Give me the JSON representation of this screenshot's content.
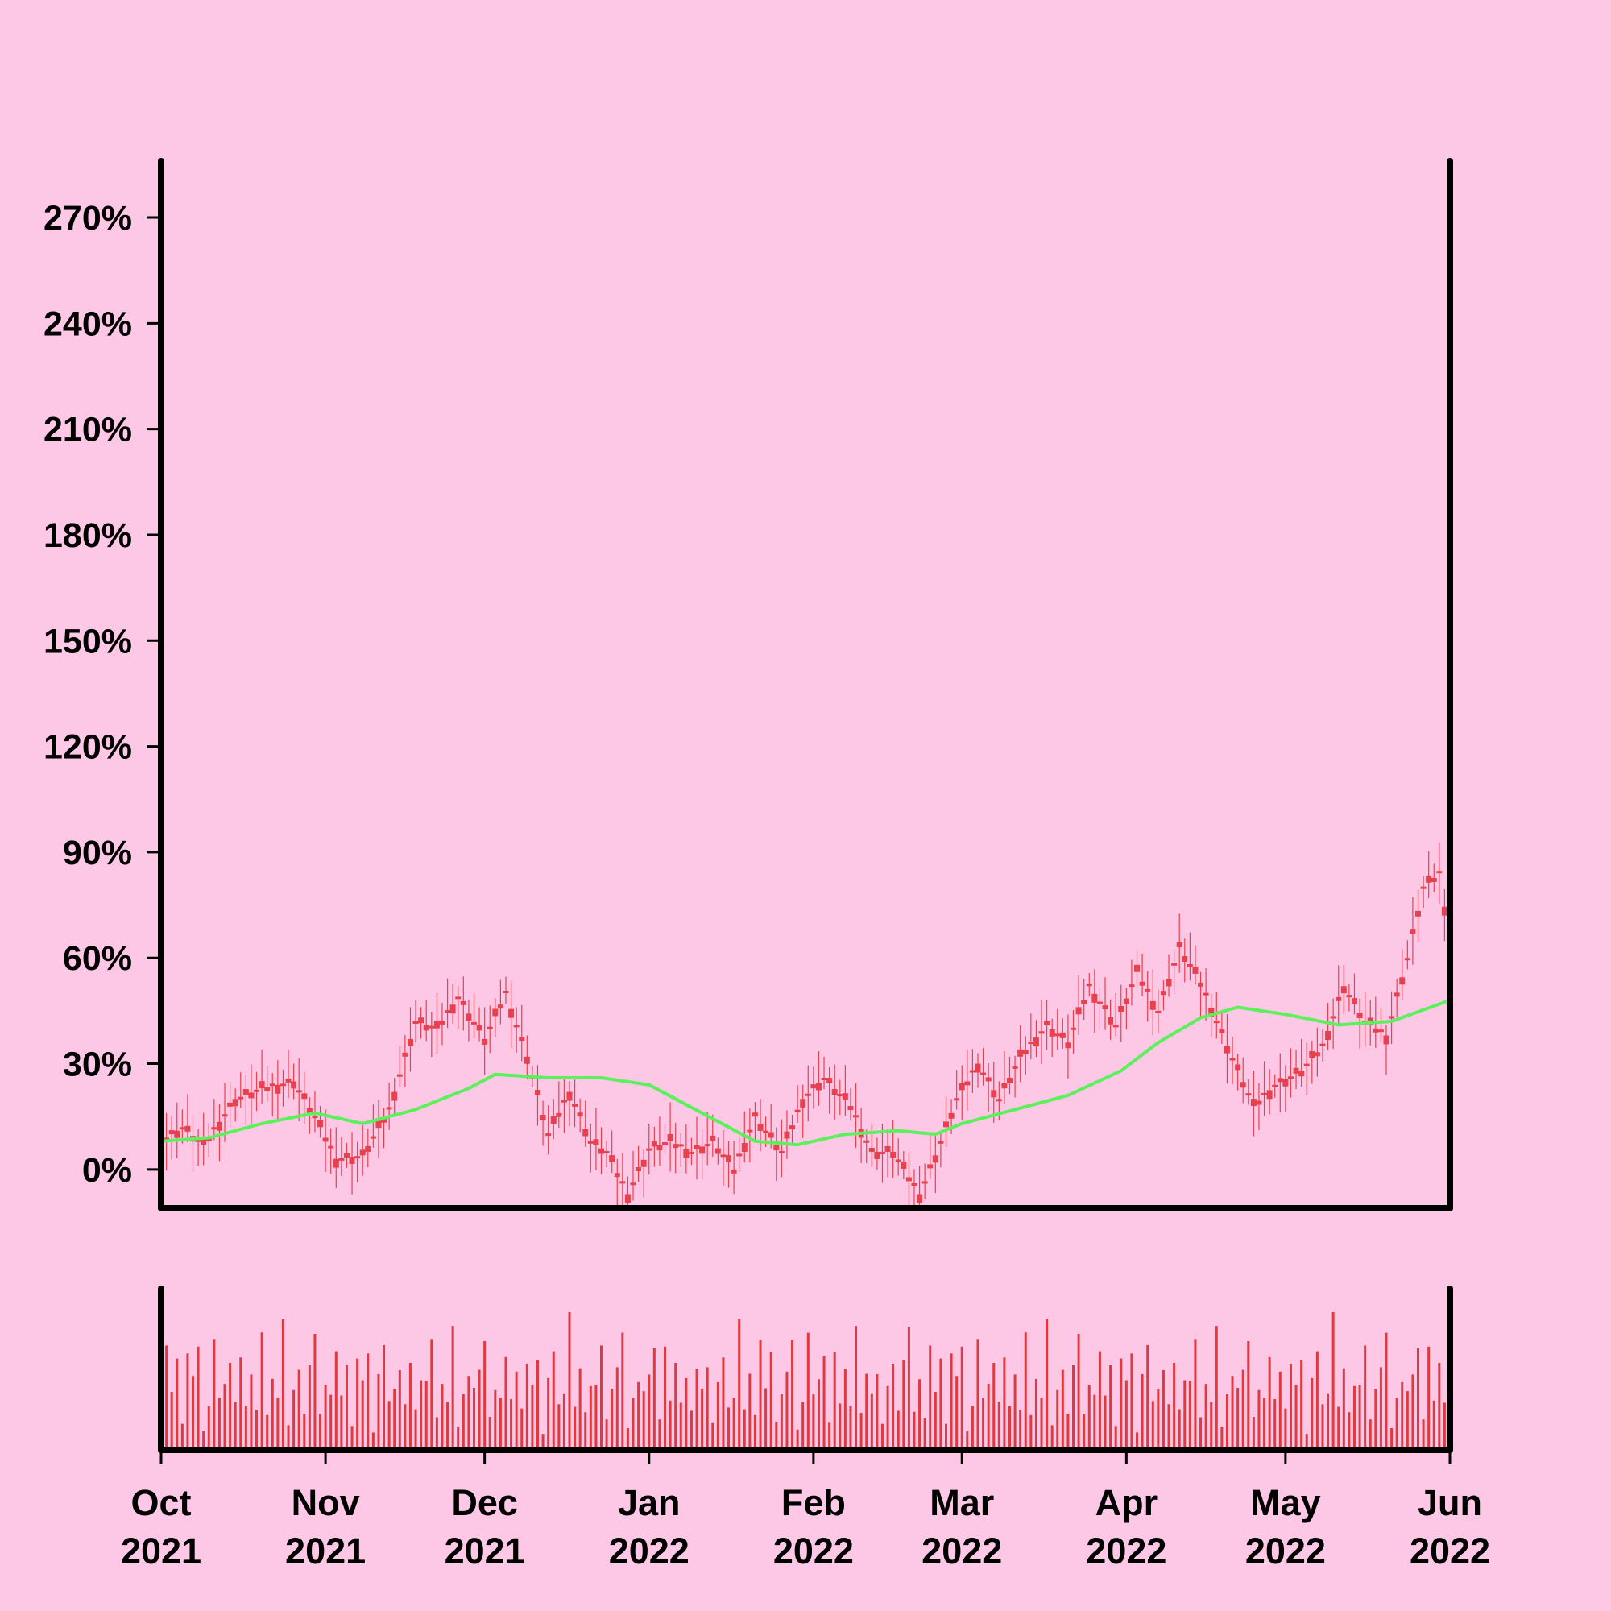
{
  "colors": {
    "background": "#fdc8e6",
    "candle": "#e8404e",
    "moving_average": "#5cf05c",
    "volume": "#e03a40",
    "axis": "#000000"
  },
  "chart_data": {
    "type": "candlestick",
    "title": "",
    "xlabel": "",
    "ylabel": "",
    "x_range": [
      "2021-10-01",
      "2022-06-01"
    ],
    "ylim": [
      -0.11,
      2.86
    ],
    "y_ticks": [
      0,
      0.3,
      0.6,
      0.9,
      1.2,
      1.5,
      1.8,
      2.1,
      2.4,
      2.7
    ],
    "y_tick_labels": [
      "0%",
      "30%",
      "60%",
      "90%",
      "120%",
      "150%",
      "180%",
      "210%",
      "240%",
      "270%"
    ],
    "x_ticks": [
      "2021-10-01",
      "2021-11-01",
      "2021-12-01",
      "2022-01-01",
      "2022-02-01",
      "2022-03-01",
      "2022-04-01",
      "2022-05-01",
      "2022-06-01"
    ],
    "x_tick_labels": [
      {
        "month": "Oct",
        "year": "2021"
      },
      {
        "month": "Nov",
        "year": "2021"
      },
      {
        "month": "Dec",
        "year": "2021"
      },
      {
        "month": "Jan",
        "year": "2022"
      },
      {
        "month": "Feb",
        "year": "2022"
      },
      {
        "month": "Mar",
        "year": "2022"
      },
      {
        "month": "Apr",
        "year": "2022"
      },
      {
        "month": "May",
        "year": "2022"
      },
      {
        "month": "Jun",
        "year": "2022"
      }
    ],
    "grid": false,
    "price_path": [
      [
        "2021-10-01",
        0.08
      ],
      [
        "2021-10-05",
        0.12
      ],
      [
        "2021-10-09",
        0.07
      ],
      [
        "2021-10-15",
        0.2
      ],
      [
        "2021-10-20",
        0.23
      ],
      [
        "2021-10-26",
        0.25
      ],
      [
        "2021-10-30",
        0.15
      ],
      [
        "2021-11-03",
        0.03
      ],
      [
        "2021-11-08",
        0.04
      ],
      [
        "2021-11-13",
        0.17
      ],
      [
        "2021-11-18",
        0.42
      ],
      [
        "2021-11-22",
        0.4
      ],
      [
        "2021-11-26",
        0.49
      ],
      [
        "2021-12-01",
        0.37
      ],
      [
        "2021-12-05",
        0.5
      ],
      [
        "2021-12-09",
        0.32
      ],
      [
        "2021-12-13",
        0.1
      ],
      [
        "2021-12-17",
        0.22
      ],
      [
        "2021-12-21",
        0.08
      ],
      [
        "2021-12-24",
        0.05
      ],
      [
        "2021-12-28",
        -0.07
      ],
      [
        "2022-01-01",
        0.06
      ],
      [
        "2022-01-05",
        0.08
      ],
      [
        "2022-01-09",
        0.05
      ],
      [
        "2022-01-13",
        0.08
      ],
      [
        "2022-01-17",
        0.0
      ],
      [
        "2022-01-21",
        0.15
      ],
      [
        "2022-01-26",
        0.05
      ],
      [
        "2022-01-30",
        0.2
      ],
      [
        "2022-02-03",
        0.26
      ],
      [
        "2022-02-08",
        0.18
      ],
      [
        "2022-02-12",
        0.05
      ],
      [
        "2022-02-16",
        0.05
      ],
      [
        "2022-02-21",
        -0.07
      ],
      [
        "2022-02-24",
        0.04
      ],
      [
        "2022-02-28",
        0.2
      ],
      [
        "2022-03-04",
        0.3
      ],
      [
        "2022-03-08",
        0.2
      ],
      [
        "2022-03-12",
        0.32
      ],
      [
        "2022-03-17",
        0.41
      ],
      [
        "2022-03-21",
        0.36
      ],
      [
        "2022-03-25",
        0.52
      ],
      [
        "2022-03-30",
        0.41
      ],
      [
        "2022-04-03",
        0.56
      ],
      [
        "2022-04-07",
        0.45
      ],
      [
        "2022-04-11",
        0.63
      ],
      [
        "2022-04-15",
        0.53
      ],
      [
        "2022-04-20",
        0.35
      ],
      [
        "2022-04-25",
        0.18
      ],
      [
        "2022-04-29",
        0.24
      ],
      [
        "2022-05-04",
        0.28
      ],
      [
        "2022-05-08",
        0.35
      ],
      [
        "2022-05-12",
        0.52
      ],
      [
        "2022-05-16",
        0.42
      ],
      [
        "2022-05-20",
        0.38
      ],
      [
        "2022-05-24",
        0.6
      ],
      [
        "2022-05-27",
        0.8
      ],
      [
        "2022-05-30",
        0.84
      ],
      [
        "2022-06-01",
        0.65
      ]
    ],
    "moving_average": [
      [
        "2021-10-01",
        0.08
      ],
      [
        "2021-10-10",
        0.09
      ],
      [
        "2021-10-20",
        0.13
      ],
      [
        "2021-10-30",
        0.16
      ],
      [
        "2021-11-08",
        0.13
      ],
      [
        "2021-11-18",
        0.17
      ],
      [
        "2021-11-28",
        0.23
      ],
      [
        "2021-12-03",
        0.27
      ],
      [
        "2021-12-13",
        0.26
      ],
      [
        "2021-12-23",
        0.26
      ],
      [
        "2022-01-01",
        0.24
      ],
      [
        "2022-01-11",
        0.16
      ],
      [
        "2022-01-21",
        0.08
      ],
      [
        "2022-01-29",
        0.07
      ],
      [
        "2022-02-07",
        0.1
      ],
      [
        "2022-02-17",
        0.11
      ],
      [
        "2022-02-24",
        0.1
      ],
      [
        "2022-03-01",
        0.13
      ],
      [
        "2022-03-11",
        0.17
      ],
      [
        "2022-03-21",
        0.21
      ],
      [
        "2022-03-31",
        0.28
      ],
      [
        "2022-04-07",
        0.36
      ],
      [
        "2022-04-15",
        0.43
      ],
      [
        "2022-04-22",
        0.46
      ],
      [
        "2022-05-01",
        0.44
      ],
      [
        "2022-05-11",
        0.41
      ],
      [
        "2022-05-21",
        0.42
      ],
      [
        "2022-06-01",
        0.48
      ]
    ],
    "volume_profile": [
      0.4,
      0.8,
      0.5,
      0.9,
      0.3,
      0.7,
      0.6,
      0.95,
      0.2,
      0.55,
      0.85,
      0.45,
      0.65,
      1.0,
      0.35,
      0.75
    ]
  }
}
